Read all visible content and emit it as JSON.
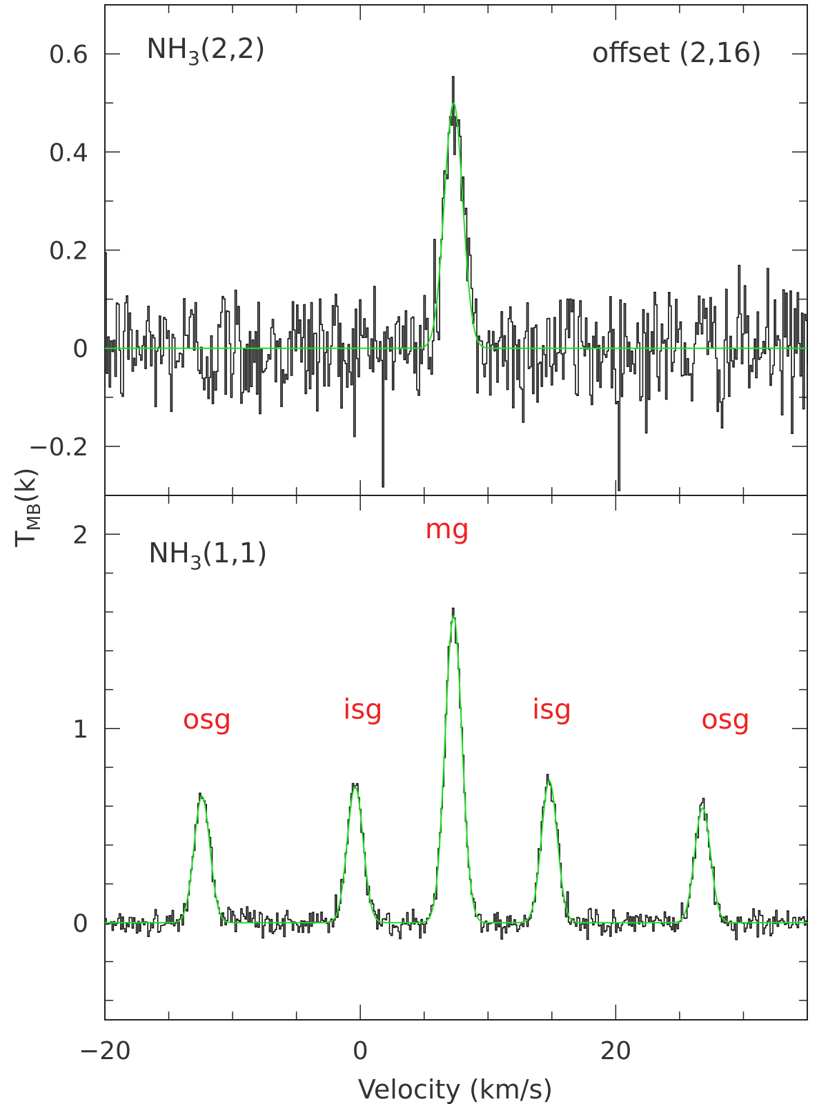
{
  "chart_data": [
    {
      "type": "line",
      "panel": "top",
      "label_main": "NH",
      "label_sub": "3",
      "label_tail": "(2,2)",
      "offset_label": "offset (2,16)",
      "xlim": [
        -20,
        35
      ],
      "ylim": [
        -0.3,
        0.7
      ],
      "yticks": [
        0.6,
        0.4,
        0.2,
        0,
        -0.2
      ],
      "ytick_labels": [
        "0.6",
        "0.4",
        "0.2",
        "0",
        "−0.2"
      ],
      "yminor_step": 0.1,
      "noise_rms": 0.07,
      "series": [
        {
          "role": "spectrum",
          "color": "#111111"
        },
        {
          "role": "fit",
          "color": "#22dd22",
          "components": [
            {
              "amp": 0.5,
              "center": 7.3,
              "sigma": 0.72
            }
          ]
        }
      ]
    },
    {
      "type": "line",
      "panel": "bottom",
      "label_main": "NH",
      "label_sub": "3",
      "label_tail": "(1,1)",
      "xlim": [
        -20,
        35
      ],
      "ylim": [
        -0.5,
        2.2
      ],
      "yticks": [
        2,
        1,
        0
      ],
      "ytick_labels": [
        "2",
        "1",
        "0"
      ],
      "yminor_step": 0.2,
      "noise_rms": 0.035,
      "series": [
        {
          "role": "spectrum",
          "color": "#111111"
        },
        {
          "role": "fit",
          "color": "#22dd22",
          "components": [
            {
              "amp": 0.65,
              "center": -12.4,
              "sigma": 0.62
            },
            {
              "amp": 0.7,
              "center": -0.4,
              "sigma": 0.62
            },
            {
              "amp": 1.58,
              "center": 7.3,
              "sigma": 0.66
            },
            {
              "amp": 0.73,
              "center": 14.8,
              "sigma": 0.62
            },
            {
              "amp": 0.59,
              "center": 26.8,
              "sigma": 0.62
            }
          ]
        }
      ],
      "annotations": [
        {
          "text": "osg",
          "x": -12.0,
          "y": 1.0
        },
        {
          "text": "isg",
          "x": 0.2,
          "y": 1.05
        },
        {
          "text": "mg",
          "x": 6.8,
          "y": 1.98
        },
        {
          "text": "isg",
          "x": 15.0,
          "y": 1.05
        },
        {
          "text": "osg",
          "x": 28.6,
          "y": 1.0
        }
      ],
      "annotation_color": "#ee2222"
    }
  ],
  "xaxis": {
    "label": "Velocity (km/s)",
    "ticks": [
      -20,
      0,
      20
    ],
    "tick_labels": [
      "−20",
      "0",
      "20"
    ],
    "minor_step": 5
  },
  "yaxis": {
    "label_main": "T",
    "label_sub": "MB",
    "label_tail": "(k)"
  }
}
